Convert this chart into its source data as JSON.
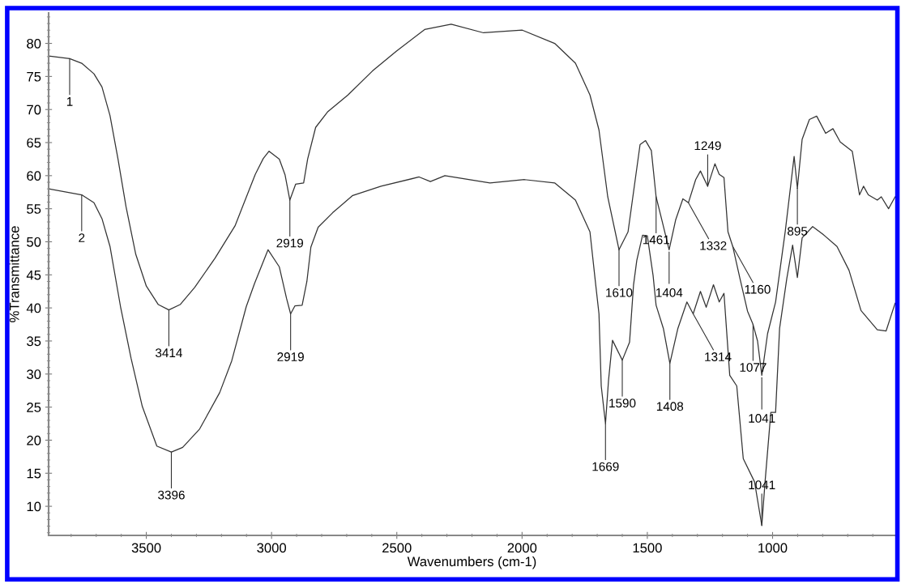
{
  "chart_data": {
    "type": "line",
    "xlabel": "Wavenumbers (cm-1)",
    "ylabel": "%Transmittance",
    "xlim": [
      3890,
      510
    ],
    "xticks": [
      3500,
      3000,
      2500,
      2000,
      1500,
      1000
    ],
    "ylim": [
      5.6,
      84.6
    ],
    "yticks": [
      10,
      15,
      20,
      25,
      30,
      35,
      40,
      45,
      50,
      55,
      60,
      65,
      70,
      75,
      80
    ],
    "grid": false,
    "legend": false,
    "marker": "none",
    "line_style": "solid",
    "series": [
      {
        "color": "#333333",
        "x": [
          3890,
          3806,
          3758,
          3709,
          3677,
          3645,
          3613,
          3581,
          3542,
          3500,
          3452,
          3410,
          3365,
          3307,
          3226,
          3146,
          3065,
          3033,
          3010,
          2969,
          2946,
          2927,
          2904,
          2872,
          2856,
          2824,
          2775,
          2695,
          2598,
          2502,
          2389,
          2283,
          2154,
          1999,
          1870,
          1787,
          1729,
          1693,
          1658,
          1613,
          1577,
          1529,
          1507,
          1484,
          1465,
          1442,
          1413,
          1387,
          1358,
          1336,
          1307,
          1288,
          1259,
          1230,
          1213,
          1194,
          1178,
          1159,
          1130,
          1100,
          1078,
          1060,
          1043,
          1020,
          988,
          949,
          914,
          901,
          882,
          853,
          824,
          788,
          759,
          730,
          682,
          653,
          637,
          618,
          582,
          566,
          537,
          511
        ],
        "values": [
          78.1,
          77.7,
          77.0,
          75.4,
          73.4,
          69.1,
          62.5,
          55.3,
          48.1,
          43.3,
          40.5,
          39.7,
          40.5,
          43.1,
          47.5,
          52.4,
          60.2,
          62.6,
          63.7,
          62.5,
          60.1,
          56.3,
          58.7,
          58.9,
          62.5,
          67.3,
          69.7,
          72.2,
          75.8,
          78.8,
          82.1,
          82.9,
          81.6,
          82.0,
          80.0,
          77.0,
          72.2,
          66.9,
          56.8,
          48.8,
          51.5,
          64.7,
          65.3,
          63.8,
          56.8,
          53.3,
          48.8,
          53.3,
          56.5,
          55.9,
          59.4,
          60.7,
          58.4,
          61.8,
          60.2,
          59.7,
          51.5,
          49.3,
          44.4,
          39.5,
          37.5,
          35.0,
          29.8,
          36.1,
          40.9,
          51.7,
          62.9,
          58.1,
          65.5,
          68.5,
          69.0,
          66.4,
          67.1,
          65.1,
          63.7,
          57.1,
          58.4,
          57.1,
          56.3,
          56.8,
          55.0,
          56.8
        ]
      },
      {
        "color": "#333333",
        "x": [
          3890,
          3758,
          3709,
          3677,
          3645,
          3603,
          3561,
          3516,
          3458,
          3400,
          3355,
          3287,
          3207,
          3159,
          3101,
          3068,
          3014,
          2969,
          2940,
          2924,
          2907,
          2878,
          2859,
          2843,
          2814,
          2756,
          2676,
          2563,
          2411,
          2366,
          2308,
          2128,
          1990,
          1870,
          1787,
          1729,
          1706,
          1693,
          1684,
          1667,
          1655,
          1639,
          1600,
          1571,
          1555,
          1542,
          1519,
          1500,
          1477,
          1465,
          1436,
          1410,
          1378,
          1342,
          1317,
          1288,
          1265,
          1236,
          1213,
          1194,
          1171,
          1143,
          1117,
          1072,
          1043,
          1030,
          1007,
          988,
          972,
          943,
          920,
          901,
          882,
          840,
          801,
          743,
          695,
          647,
          582,
          547,
          511
        ],
        "values": [
          58.0,
          57.1,
          55.9,
          53.5,
          49.3,
          40.2,
          32.4,
          25.1,
          19.1,
          18.2,
          18.9,
          21.7,
          27.2,
          32.0,
          40.2,
          43.7,
          48.8,
          46.2,
          41.4,
          39.1,
          40.3,
          40.4,
          44.0,
          49.2,
          52.2,
          54.4,
          57.0,
          58.4,
          59.8,
          59.1,
          60.0,
          58.9,
          59.4,
          58.9,
          56.3,
          51.5,
          43.5,
          39.1,
          28.2,
          22.5,
          29.0,
          35.1,
          32.1,
          34.8,
          43.5,
          47.2,
          51.0,
          50.9,
          44.9,
          40.4,
          36.9,
          31.6,
          36.9,
          40.9,
          39.1,
          42.5,
          40.1,
          43.5,
          40.9,
          42.2,
          29.8,
          28.2,
          17.2,
          13.7,
          7.1,
          13.7,
          24.2,
          24.2,
          36.9,
          44.5,
          49.5,
          44.6,
          50.6,
          52.3,
          51.2,
          49.3,
          45.7,
          39.6,
          36.7,
          36.5,
          40.7
        ]
      }
    ],
    "annotations": [
      {
        "text": "1",
        "x": 3806,
        "y": 77.7
      },
      {
        "text": "2",
        "x": 3758,
        "y": 57.1
      },
      {
        "text": "3414",
        "x": 3410,
        "y": 39.7
      },
      {
        "text": "2919",
        "x": 2927,
        "y": 56.3
      },
      {
        "text": "3396",
        "x": 3400,
        "y": 18.2
      },
      {
        "text": "2919",
        "x": 2924,
        "y": 39.1
      },
      {
        "text": "1610",
        "x": 1613,
        "y": 48.8
      },
      {
        "text": "1461",
        "x": 1465,
        "y": 56.8
      },
      {
        "text": "1404",
        "x": 1413,
        "y": 48.8
      },
      {
        "text": "1332",
        "x": 1336,
        "y": 55.9
      },
      {
        "text": "1249",
        "x": 1259,
        "y": 58.4
      },
      {
        "text": "1160",
        "x": 1159,
        "y": 49.3
      },
      {
        "text": "895",
        "x": 901,
        "y": 58.1
      },
      {
        "text": "1077",
        "x": 1078,
        "y": 37.5
      },
      {
        "text": "1041",
        "x": 1043,
        "y": 29.8
      },
      {
        "text": "1669",
        "x": 1667,
        "y": 22.5
      },
      {
        "text": "1590",
        "x": 1600,
        "y": 32.1
      },
      {
        "text": "1408",
        "x": 1410,
        "y": 31.6
      },
      {
        "text": "1314",
        "x": 1317,
        "y": 39.1
      },
      {
        "text": "1041",
        "x": 1043,
        "y": 7.1
      }
    ]
  }
}
